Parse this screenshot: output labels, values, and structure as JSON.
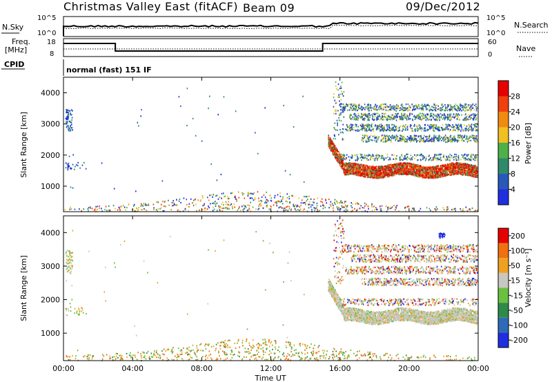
{
  "header": {
    "station": "Christmas Valley East (fitACF)",
    "beam": "Beam 09",
    "date": "09/Dec/2012"
  },
  "top_panels": {
    "nsky_label": "N.Sky",
    "nsky_ticks": [
      "10^5",
      "10^0"
    ],
    "nsearch_label": "N.Search",
    "nsearch_ticks": [
      "10^5",
      "10^0"
    ],
    "freq_label_1": "Freq.",
    "freq_label_2": "[MHz]",
    "freq_ticks": [
      "18",
      "8"
    ],
    "nave_label": "Nave",
    "nave_ticks": [
      "60",
      "0"
    ],
    "cpid_label": "CPID",
    "cpid_value": "normal (fast) 151 IF"
  },
  "chart_data": [
    {
      "type": "heatmap",
      "name": "power",
      "ylabel": "Slant Range [km]",
      "xlabel": "",
      "ylim": [
        180,
        4500
      ],
      "y_ticks": [
        "1000",
        "2000",
        "3000",
        "4000"
      ],
      "colorbar_label": "Power [dB]",
      "colorbar_ticks": [
        "4",
        "8",
        "12",
        "16",
        "20",
        "24",
        "28"
      ],
      "colors": [
        "#1f2fe0",
        "#2a58b8",
        "#2f8a6a",
        "#4fb04a",
        "#f0c020",
        "#f08a10",
        "#f04010",
        "#e60000"
      ]
    },
    {
      "type": "heatmap",
      "name": "velocity",
      "ylabel": "Slant Range [km]",
      "xlabel": "Time UT",
      "ylim": [
        180,
        4500
      ],
      "y_ticks": [
        "1000",
        "2000",
        "3000",
        "4000"
      ],
      "x_ticks": [
        "00:00",
        "04:00",
        "08:00",
        "12:00",
        "16:00",
        "20:00",
        "00:00"
      ],
      "colorbar_label": "Velocity [m s⁻¹]",
      "colorbar_ticks": [
        "200",
        "100",
        "50",
        "15",
        "-15",
        "-50",
        "-100",
        "-200"
      ],
      "colors": [
        "#1f2fe0",
        "#2f6ab8",
        "#2f8a4a",
        "#6ac040",
        "#c8c8c0",
        "#f0a020",
        "#f07010",
        "#e60000"
      ]
    }
  ]
}
